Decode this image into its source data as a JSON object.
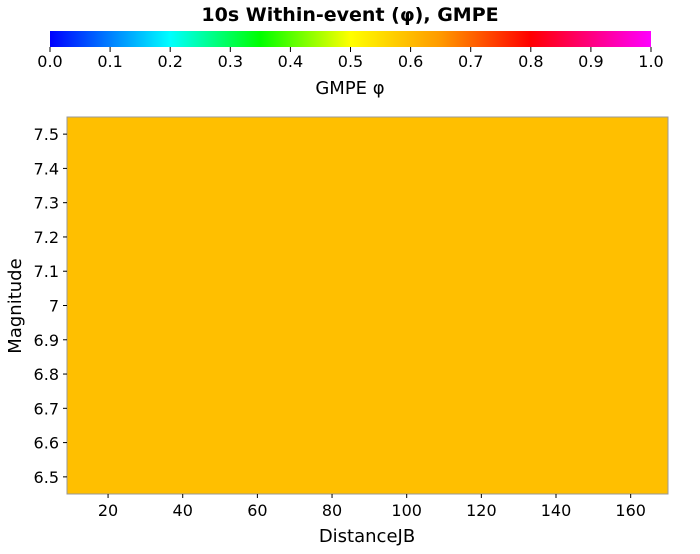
{
  "chart_data": {
    "type": "heatmap",
    "title": "10s Within-event (φ), GMPE",
    "colorbar": {
      "label": "GMPE φ",
      "range": [
        0.0,
        1.0
      ],
      "ticks": [
        "0.0",
        "0.1",
        "0.2",
        "0.3",
        "0.4",
        "0.5",
        "0.6",
        "0.7",
        "0.8",
        "0.9",
        "1.0"
      ],
      "stops": [
        {
          "value": 0.0,
          "color": "#0000ff"
        },
        {
          "value": 0.2,
          "color": "#00ffff"
        },
        {
          "value": 0.35,
          "color": "#00ff00"
        },
        {
          "value": 0.5,
          "color": "#ffff00"
        },
        {
          "value": 0.65,
          "color": "#ff9900"
        },
        {
          "value": 0.8,
          "color": "#ff0000"
        },
        {
          "value": 1.0,
          "color": "#ff00ff"
        }
      ]
    },
    "xlabel": "DistanceJB",
    "ylabel": "Magnitude",
    "xlim": [
      9,
      170
    ],
    "ylim": [
      6.45,
      7.55
    ],
    "xticks": [
      20,
      40,
      60,
      80,
      100,
      120,
      140,
      160
    ],
    "yticks": [
      "6.5",
      "6.6",
      "6.7",
      "6.8",
      "6.9",
      "7",
      "7.1",
      "7.2",
      "7.3",
      "7.4",
      "7.5"
    ],
    "cells": [
      {
        "x": [
          9,
          170
        ],
        "y": [
          6.45,
          7.55
        ],
        "value": 0.6,
        "color": "#ffbf00"
      }
    ]
  }
}
